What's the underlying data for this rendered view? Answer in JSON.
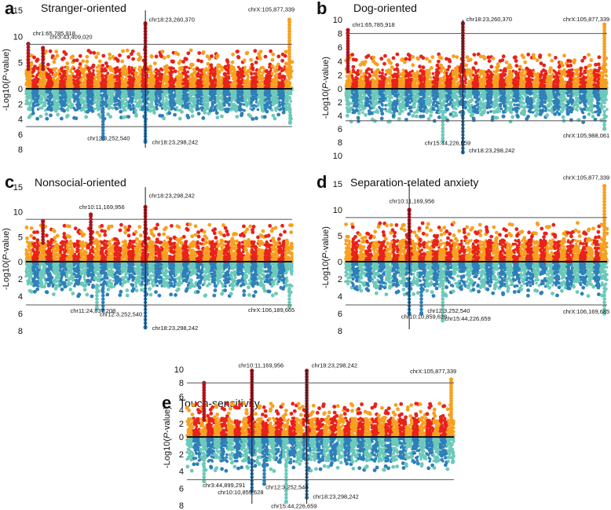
{
  "colors": {
    "top_odd": "#f7a020",
    "top_even": "#e8221c",
    "bottom_odd": "#6cc9b9",
    "bottom_even": "#2f7fb9",
    "highlight": "#b0141e",
    "vline": "#1a1a1a"
  },
  "chart_data": [
    {
      "type": "scatter",
      "panel_letter": "a",
      "title": "Stranger-oriented",
      "ylabel": "-Log10(P-value)",
      "ylim_top": [
        0,
        15
      ],
      "ylim_bottom": [
        0,
        8
      ],
      "top_ticks": [
        "0",
        "5",
        "10",
        "15"
      ],
      "bottom_ticks": [
        "2",
        "4",
        "6",
        "8"
      ],
      "top_threshold": 8.5,
      "bottom_threshold": 5,
      "vlines": [
        18
      ],
      "peaks_top": [
        {
          "chr": 1,
          "pos": 0.35,
          "value": 8.6
        },
        {
          "chr": 3,
          "pos": 0.5,
          "value": 7.8
        },
        {
          "chr": 18,
          "pos": 0.5,
          "value": 12.5
        },
        {
          "chr": 39,
          "pos": 0.6,
          "value": 13.2
        }
      ],
      "peaks_bottom": [
        {
          "chr": 12,
          "pos": 0.3,
          "value": 6.6
        },
        {
          "chr": 18,
          "pos": 0.5,
          "value": 7.0
        },
        {
          "chr": 39,
          "pos": 0.7,
          "value": 4.5
        }
      ],
      "annotations": [
        {
          "text": "chr1:65,785,918",
          "chr": 1,
          "value": 10.2,
          "half": "top"
        },
        {
          "text": "chr3:43,409,020",
          "chr": 3.5,
          "value": 9.5,
          "half": "top"
        },
        {
          "text": "chr18:23,260,370",
          "chr": 18,
          "value": 12.8,
          "half": "top"
        },
        {
          "text": "chrX:105,877,339",
          "chr": 34.5,
          "value": 14.8,
          "half": "top"
        },
        {
          "text": "chr12:3,252,540",
          "chr": 9,
          "value": 6.8,
          "half": "bottom"
        },
        {
          "text": "chr18:23,298,242",
          "chr": 18.5,
          "value": 7.3,
          "half": "bottom"
        }
      ]
    },
    {
      "type": "scatter",
      "panel_letter": "b",
      "title": "Dog-oriented",
      "ylabel": "-Log10(P-value)",
      "ylim_top": [
        0,
        10
      ],
      "ylim_bottom": [
        0,
        10
      ],
      "top_ticks": [
        "0",
        "2",
        "4",
        "6",
        "8",
        "10"
      ],
      "bottom_ticks": [
        "2",
        "4",
        "6",
        "8",
        "10"
      ],
      "top_threshold": 8,
      "bottom_threshold": 4.8,
      "vlines": [
        18
      ],
      "peaks_top": [
        {
          "chr": 1,
          "pos": 0.35,
          "value": 8.5
        },
        {
          "chr": 18,
          "pos": 0.5,
          "value": 9.5
        },
        {
          "chr": 39,
          "pos": 0.6,
          "value": 9.3
        }
      ],
      "peaks_bottom": [
        {
          "chr": 15,
          "pos": 0.5,
          "value": 7.8
        },
        {
          "chr": 18,
          "pos": 0.5,
          "value": 9.5
        },
        {
          "chr": 39,
          "pos": 0.6,
          "value": 6.0
        }
      ],
      "annotations": [
        {
          "text": "chr1:65,785,918",
          "chr": 1,
          "value": 9.0,
          "half": "top"
        },
        {
          "text": "chr18:23,260,370",
          "chr": 18,
          "value": 9.8,
          "half": "top"
        },
        {
          "text": "chrX:105,877,339",
          "chr": 34.5,
          "value": 9.8,
          "half": "top"
        },
        {
          "text": "chr15:44,226,659",
          "chr": 11.8,
          "value": 8.4,
          "half": "bottom"
        },
        {
          "text": "chr18:23,298,242",
          "chr": 18.4,
          "value": 9.5,
          "half": "bottom"
        },
        {
          "text": "chrX:105,988,061",
          "chr": 34.5,
          "value": 7.3,
          "half": "bottom"
        }
      ]
    },
    {
      "type": "scatter",
      "panel_letter": "c",
      "title": "Nonsocial-oriented",
      "ylabel": "-Log10(P-value)",
      "ylim_top": [
        0,
        15
      ],
      "ylim_bottom": [
        0,
        8
      ],
      "top_ticks": [
        "0",
        "5",
        "10",
        "15"
      ],
      "bottom_ticks": [
        "2",
        "4",
        "6",
        "8"
      ],
      "top_threshold": 8.5,
      "bottom_threshold": 5,
      "vlines": [
        18
      ],
      "peaks_top": [
        {
          "chr": 3,
          "pos": 0.5,
          "value": 8.2
        },
        {
          "chr": 10,
          "pos": 0.5,
          "value": 9.5
        },
        {
          "chr": 18,
          "pos": 0.5,
          "value": 11.0
        }
      ],
      "peaks_bottom": [
        {
          "chr": 11,
          "pos": 0.4,
          "value": 5.4
        },
        {
          "chr": 12,
          "pos": 0.3,
          "value": 5.6
        },
        {
          "chr": 18,
          "pos": 0.5,
          "value": 7.6
        },
        {
          "chr": 39,
          "pos": 0.6,
          "value": 5.2
        }
      ],
      "annotations": [
        {
          "text": "chr10:11,169,956",
          "chr": 7.8,
          "value": 10.6,
          "half": "top"
        },
        {
          "text": "chr18:23,298,242",
          "chr": 18,
          "value": 12.9,
          "half": "top"
        },
        {
          "text": "chr11:24,837,208",
          "chr": 6.5,
          "value": 5.9,
          "half": "bottom"
        },
        {
          "text": "chr12:3,252,540",
          "chr": 10.8,
          "value": 6.3,
          "half": "bottom"
        },
        {
          "text": "chr18:23,298,242",
          "chr": 18.5,
          "value": 7.9,
          "half": "bottom"
        },
        {
          "text": "chrX:106,189,665",
          "chr": 34.5,
          "value": 5.8,
          "half": "bottom"
        }
      ]
    },
    {
      "type": "scatter",
      "panel_letter": "d",
      "title": "Separation-related anxiety",
      "ylabel": "-Log10(P-value)",
      "ylim_top": [
        0,
        15
      ],
      "ylim_bottom": [
        0,
        8
      ],
      "top_ticks": [
        "0",
        "5",
        "10",
        "15"
      ],
      "bottom_ticks": [
        "2",
        "4",
        "6",
        "8"
      ],
      "top_threshold": 8.5,
      "bottom_threshold": 5,
      "vlines": [
        10
      ],
      "peaks_top": [
        {
          "chr": 10,
          "pos": 0.5,
          "value": 10.0
        },
        {
          "chr": 39,
          "pos": 0.6,
          "value": 14.6
        }
      ],
      "peaks_bottom": [
        {
          "chr": 10,
          "pos": 0.5,
          "value": 6.0
        },
        {
          "chr": 12,
          "pos": 0.3,
          "value": 6.0
        },
        {
          "chr": 15,
          "pos": 0.5,
          "value": 6.8
        },
        {
          "chr": 39,
          "pos": 0.6,
          "value": 6.0
        }
      ],
      "annotations": [
        {
          "text": "chr10:11,169,956",
          "chr": 6.5,
          "value": 11.3,
          "half": "top"
        },
        {
          "text": "chrX:105,877,339",
          "chr": 34.5,
          "value": 15.8,
          "half": "top"
        },
        {
          "text": "chr10:10,859,628",
          "chr": 8.3,
          "value": 6.6,
          "half": "bottom"
        },
        {
          "text": "chr12:3,252,540",
          "chr": 12.2,
          "value": 5.9,
          "half": "bottom"
        },
        {
          "text": "chr15:44,226,659",
          "chr": 14.8,
          "value": 6.8,
          "half": "bottom"
        },
        {
          "text": "chrX:106,169,685",
          "chr": 34.5,
          "value": 6.0,
          "half": "bottom"
        }
      ]
    },
    {
      "type": "scatter",
      "panel_letter": "e",
      "title": "Touch-sensitivity",
      "ylabel": "-Log10(P-value)",
      "ylim_top": [
        0,
        10
      ],
      "ylim_bottom": [
        0,
        8
      ],
      "top_ticks": [
        "0",
        "2",
        "4",
        "6",
        "8",
        "10"
      ],
      "bottom_ticks": [
        "2",
        "4",
        "6",
        "8"
      ],
      "top_threshold": 8,
      "bottom_threshold": 5,
      "vlines": [
        10,
        18
      ],
      "peaks_top": [
        {
          "chr": 3,
          "pos": 0.5,
          "value": 8.0
        },
        {
          "chr": 10,
          "pos": 0.5,
          "value": 9.8
        },
        {
          "chr": 18,
          "pos": 0.5,
          "value": 9.8
        },
        {
          "chr": 39,
          "pos": 0.6,
          "value": 8.5
        }
      ],
      "peaks_bottom": [
        {
          "chr": 3,
          "pos": 0.5,
          "value": 5.2
        },
        {
          "chr": 10,
          "pos": 0.5,
          "value": 6.3
        },
        {
          "chr": 12,
          "pos": 0.3,
          "value": 5.5
        },
        {
          "chr": 15,
          "pos": 0.5,
          "value": 7.6
        },
        {
          "chr": 18,
          "pos": 0.5,
          "value": 7.1
        }
      ],
      "annotations": [
        {
          "text": "chr10:11,169,956",
          "chr": 7.5,
          "value": 10.3,
          "half": "top"
        },
        {
          "text": "chr18:23,298,242",
          "chr": 18.2,
          "value": 10.3,
          "half": "top"
        },
        {
          "text": "chrX:105,877,339",
          "chr": 34.5,
          "value": 9.4,
          "half": "top"
        },
        {
          "text": "chr3:44,899,291",
          "chr": 2.3,
          "value": 5.9,
          "half": "bottom"
        },
        {
          "text": "chr10:10,859,628",
          "chr": 4.5,
          "value": 6.7,
          "half": "bottom"
        },
        {
          "text": "chr12:3,252,540",
          "chr": 11.5,
          "value": 6.1,
          "half": "bottom"
        },
        {
          "text": "chr15:44,226,659",
          "chr": 12.3,
          "value": 8.3,
          "half": "bottom"
        },
        {
          "text": "chr18:23,298,242",
          "chr": 18.4,
          "value": 7.2,
          "half": "bottom"
        }
      ]
    }
  ]
}
